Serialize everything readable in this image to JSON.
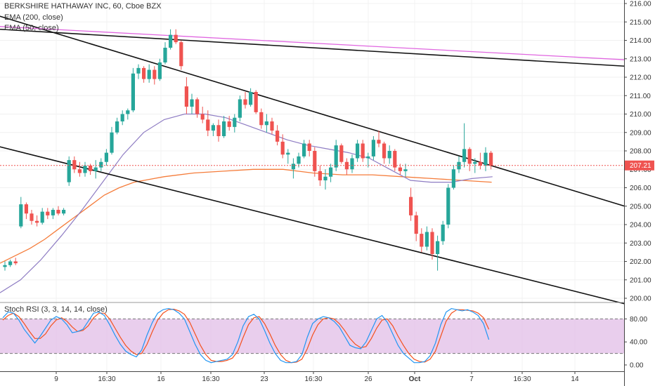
{
  "chart_data": {
    "type": "candlestick",
    "title": "BERKSHIRE HATHAWAY INC, 60, Cboe BZX",
    "indicators": [
      "EMA (200, close)",
      "EMA (50, close)"
    ],
    "price_axis": {
      "min": 200.0,
      "max": 216.0,
      "ticks": [
        "216.00",
        "215.00",
        "214.00",
        "213.00",
        "212.00",
        "211.00",
        "210.00",
        "209.00",
        "208.00",
        "207.00",
        "206.00",
        "205.00",
        "204.00",
        "203.00",
        "202.00",
        "201.00",
        "200.00"
      ]
    },
    "last_price": "207.21",
    "last_price_value": 207.21,
    "x_ticks": [
      "9",
      "16:30",
      "16",
      "16:30",
      "23",
      "16:30",
      "26",
      "16:30",
      "Oct",
      "7",
      "16:30",
      "14"
    ],
    "bar_count": 92,
    "candles": [
      [
        201.7,
        202.0,
        201.5,
        201.8
      ],
      [
        201.8,
        202.1,
        201.7,
        202.0
      ],
      [
        202.0,
        202.2,
        201.8,
        201.9
      ],
      [
        203.9,
        205.5,
        203.8,
        205.1
      ],
      [
        205.1,
        205.2,
        204.3,
        204.6
      ],
      [
        204.6,
        204.8,
        204.0,
        204.2
      ],
      [
        204.2,
        204.5,
        203.9,
        204.1
      ],
      [
        204.1,
        204.9,
        204.0,
        204.7
      ],
      [
        204.7,
        204.9,
        204.3,
        204.5
      ],
      [
        204.5,
        204.9,
        204.3,
        204.8
      ],
      [
        204.8,
        205.0,
        204.5,
        204.6
      ],
      [
        204.6,
        204.9,
        204.5,
        204.8
      ],
      [
        206.3,
        207.7,
        206.1,
        207.5
      ],
      [
        207.5,
        207.7,
        206.8,
        207.0
      ],
      [
        207.0,
        207.4,
        206.6,
        206.8
      ],
      [
        206.8,
        207.4,
        206.6,
        207.2
      ],
      [
        207.2,
        207.3,
        206.7,
        206.9
      ],
      [
        206.9,
        207.5,
        206.5,
        207.1
      ],
      [
        207.1,
        207.6,
        206.9,
        207.4
      ],
      [
        207.4,
        208.1,
        207.2,
        207.9
      ],
      [
        207.9,
        209.3,
        207.8,
        209.0
      ],
      [
        209.0,
        209.8,
        208.9,
        209.6
      ],
      [
        209.6,
        210.2,
        209.4,
        210.0
      ],
      [
        210.0,
        210.3,
        209.7,
        210.2
      ],
      [
        210.2,
        212.5,
        210.1,
        212.2
      ],
      [
        212.2,
        212.7,
        211.9,
        212.5
      ],
      [
        212.5,
        212.6,
        211.7,
        211.9
      ],
      [
        211.9,
        212.7,
        211.7,
        212.4
      ],
      [
        212.4,
        212.6,
        211.6,
        211.9
      ],
      [
        211.9,
        213.0,
        211.8,
        212.8
      ],
      [
        212.8,
        213.9,
        212.7,
        213.6
      ],
      [
        213.6,
        214.6,
        213.5,
        214.3
      ],
      [
        214.3,
        214.6,
        213.8,
        213.9
      ],
      [
        213.9,
        214.0,
        212.4,
        212.6
      ],
      [
        211.5,
        212.0,
        210.0,
        210.4
      ],
      [
        210.4,
        211.1,
        210.0,
        210.8
      ],
      [
        210.8,
        210.9,
        209.8,
        210.0
      ],
      [
        210.0,
        210.4,
        209.5,
        209.7
      ],
      [
        209.7,
        210.2,
        208.8,
        209.1
      ],
      [
        209.1,
        209.5,
        208.8,
        209.4
      ],
      [
        209.4,
        209.7,
        208.5,
        208.8
      ],
      [
        208.8,
        209.9,
        208.7,
        209.6
      ],
      [
        209.6,
        209.9,
        209.1,
        209.3
      ],
      [
        209.3,
        210.0,
        209.0,
        209.8
      ],
      [
        209.8,
        211.0,
        209.6,
        210.8
      ],
      [
        210.8,
        211.2,
        210.3,
        210.5
      ],
      [
        210.5,
        211.4,
        210.4,
        211.2
      ],
      [
        211.2,
        211.3,
        210.0,
        210.1
      ],
      [
        210.1,
        210.3,
        209.2,
        209.4
      ],
      [
        209.4,
        210.0,
        209.0,
        209.6
      ],
      [
        209.6,
        209.8,
        208.9,
        209.1
      ],
      [
        209.1,
        209.4,
        208.3,
        208.5
      ],
      [
        208.5,
        208.9,
        207.6,
        207.8
      ],
      [
        207.8,
        208.1,
        207.3,
        207.9
      ],
      [
        207.0,
        207.6,
        206.5,
        207.3
      ],
      [
        207.3,
        207.9,
        207.1,
        207.7
      ],
      [
        207.7,
        208.6,
        207.6,
        208.4
      ],
      [
        208.4,
        208.6,
        207.7,
        208.0
      ],
      [
        208.0,
        208.2,
        206.6,
        206.9
      ],
      [
        206.9,
        207.2,
        206.1,
        206.4
      ],
      [
        206.4,
        207.0,
        205.9,
        206.6
      ],
      [
        206.6,
        207.3,
        206.3,
        207.1
      ],
      [
        207.1,
        208.6,
        206.9,
        208.3
      ],
      [
        208.3,
        208.4,
        207.3,
        207.4
      ],
      [
        207.4,
        207.6,
        206.7,
        207.0
      ],
      [
        207.0,
        207.8,
        206.8,
        207.6
      ],
      [
        207.6,
        208.6,
        207.4,
        208.4
      ],
      [
        208.4,
        208.6,
        207.4,
        207.6
      ],
      [
        207.6,
        207.9,
        207.1,
        207.7
      ],
      [
        207.7,
        208.8,
        207.5,
        208.6
      ],
      [
        208.6,
        209.1,
        208.2,
        208.4
      ],
      [
        208.4,
        208.5,
        207.3,
        207.6
      ],
      [
        207.6,
        208.3,
        207.3,
        208.0
      ],
      [
        208.0,
        208.1,
        206.9,
        207.1
      ],
      [
        207.1,
        207.3,
        206.7,
        206.9
      ],
      [
        206.9,
        207.3,
        206.6,
        207.0
      ],
      [
        205.5,
        206.0,
        204.2,
        204.5
      ],
      [
        204.5,
        204.7,
        203.1,
        203.5
      ],
      [
        203.5,
        203.8,
        202.5,
        202.8
      ],
      [
        202.8,
        203.9,
        202.6,
        203.6
      ],
      [
        203.6,
        203.8,
        202.1,
        202.4
      ],
      [
        202.4,
        203.4,
        201.5,
        203.1
      ],
      [
        203.1,
        204.2,
        202.9,
        204.0
      ],
      [
        204.0,
        206.2,
        203.8,
        206.0
      ],
      [
        206.0,
        207.2,
        205.9,
        207.0
      ],
      [
        207.0,
        207.7,
        206.8,
        207.4
      ],
      [
        207.4,
        209.5,
        207.1,
        208.1
      ],
      [
        208.1,
        208.2,
        206.9,
        207.3
      ],
      [
        207.3,
        207.6,
        206.8,
        207.4
      ],
      [
        207.4,
        207.9,
        207.0,
        207.2
      ],
      [
        207.2,
        208.2,
        206.9,
        207.9
      ],
      [
        207.9,
        208.0,
        207.0,
        207.21
      ]
    ],
    "ema200": [
      [
        0,
        201.9
      ],
      [
        10,
        202.3
      ],
      [
        20,
        202.7
      ],
      [
        30,
        203.2
      ],
      [
        40,
        203.8
      ],
      [
        50,
        204.4
      ],
      [
        60,
        205.0
      ],
      [
        70,
        205.6
      ],
      [
        80,
        206.0
      ],
      [
        90,
        206.3
      ],
      [
        110,
        206.6
      ],
      [
        130,
        206.8
      ],
      [
        150,
        206.9
      ],
      [
        170,
        207.0
      ],
      [
        190,
        207.0
      ],
      [
        200,
        206.9
      ],
      [
        210,
        206.8
      ],
      [
        230,
        206.7
      ],
      [
        250,
        206.7
      ],
      [
        270,
        206.6
      ],
      [
        290,
        206.5
      ],
      [
        310,
        206.4
      ],
      [
        330,
        206.3
      ]
    ],
    "ema50": [
      [
        0,
        200.3
      ],
      [
        10,
        201.0
      ],
      [
        20,
        202.1
      ],
      [
        30,
        203.4
      ],
      [
        40,
        204.8
      ],
      [
        50,
        206.3
      ],
      [
        60,
        207.8
      ],
      [
        70,
        209.0
      ],
      [
        80,
        209.7
      ],
      [
        90,
        210.0
      ],
      [
        100,
        210.0
      ],
      [
        110,
        209.8
      ],
      [
        120,
        209.4
      ],
      [
        130,
        209.0
      ],
      [
        140,
        208.6
      ],
      [
        150,
        208.3
      ],
      [
        160,
        208.1
      ],
      [
        170,
        207.9
      ],
      [
        180,
        207.6
      ],
      [
        190,
        207.0
      ],
      [
        200,
        206.4
      ],
      [
        210,
        206.3
      ],
      [
        220,
        206.3
      ],
      [
        230,
        206.5
      ],
      [
        240,
        206.6
      ]
    ],
    "trendlines": [
      {
        "from": [
          0,
          214.6
        ],
        "to": [
          440,
          212.6
        ]
      },
      {
        "from": [
          -4,
          215.4
        ],
        "to": [
          440,
          205.0
        ]
      },
      {
        "from": [
          -4,
          208.3
        ],
        "to": [
          440,
          199.7
        ]
      }
    ],
    "stoch_rsi": {
      "label": "Stoch RSI (3, 3, 14, 14, close)",
      "ticks": [
        "80.00",
        "40.00",
        "0.00"
      ],
      "upper_band": 80,
      "lower_band": 20,
      "k": [
        82,
        92,
        90,
        78,
        62,
        50,
        38,
        50,
        64,
        78,
        84,
        80,
        70,
        56,
        58,
        62,
        76,
        90,
        92,
        86,
        70,
        52,
        36,
        24,
        18,
        14,
        26,
        52,
        74,
        90,
        96,
        98,
        96,
        90,
        80,
        58,
        36,
        18,
        8,
        4,
        6,
        8,
        10,
        18,
        40,
        68,
        84,
        88,
        80,
        60,
        38,
        20,
        8,
        4,
        4,
        6,
        18,
        48,
        72,
        80,
        84,
        82,
        76,
        66,
        50,
        34,
        30,
        28,
        40,
        60,
        80,
        86,
        74,
        54,
        34,
        20,
        12,
        4,
        4,
        6,
        16,
        38,
        70,
        92,
        98,
        96,
        94,
        96,
        92,
        86,
        72,
        44
      ],
      "d": [
        78,
        86,
        90,
        84,
        72,
        58,
        46,
        46,
        54,
        68,
        78,
        82,
        76,
        66,
        58,
        60,
        68,
        82,
        90,
        90,
        80,
        64,
        48,
        34,
        24,
        18,
        20,
        36,
        58,
        78,
        90,
        96,
        97,
        94,
        88,
        74,
        54,
        34,
        18,
        8,
        6,
        6,
        8,
        12,
        24,
        48,
        70,
        82,
        84,
        72,
        54,
        34,
        18,
        8,
        4,
        5,
        10,
        28,
        52,
        70,
        80,
        82,
        80,
        72,
        60,
        46,
        36,
        30,
        32,
        46,
        64,
        78,
        80,
        68,
        50,
        34,
        20,
        10,
        6,
        5,
        10,
        24,
        50,
        76,
        90,
        96,
        96,
        95,
        94,
        90,
        82,
        62
      ]
    },
    "colors": {
      "up": "#26a69a",
      "down": "#ef5350",
      "ema200": "#f57c3a",
      "ema50": "#8e7cc3",
      "trend_long": "#e066e0",
      "price_tag": "#ef5350",
      "stoch_k": "#2196f3",
      "stoch_d": "#f4511e",
      "stoch_band": "#e1bee7"
    }
  }
}
